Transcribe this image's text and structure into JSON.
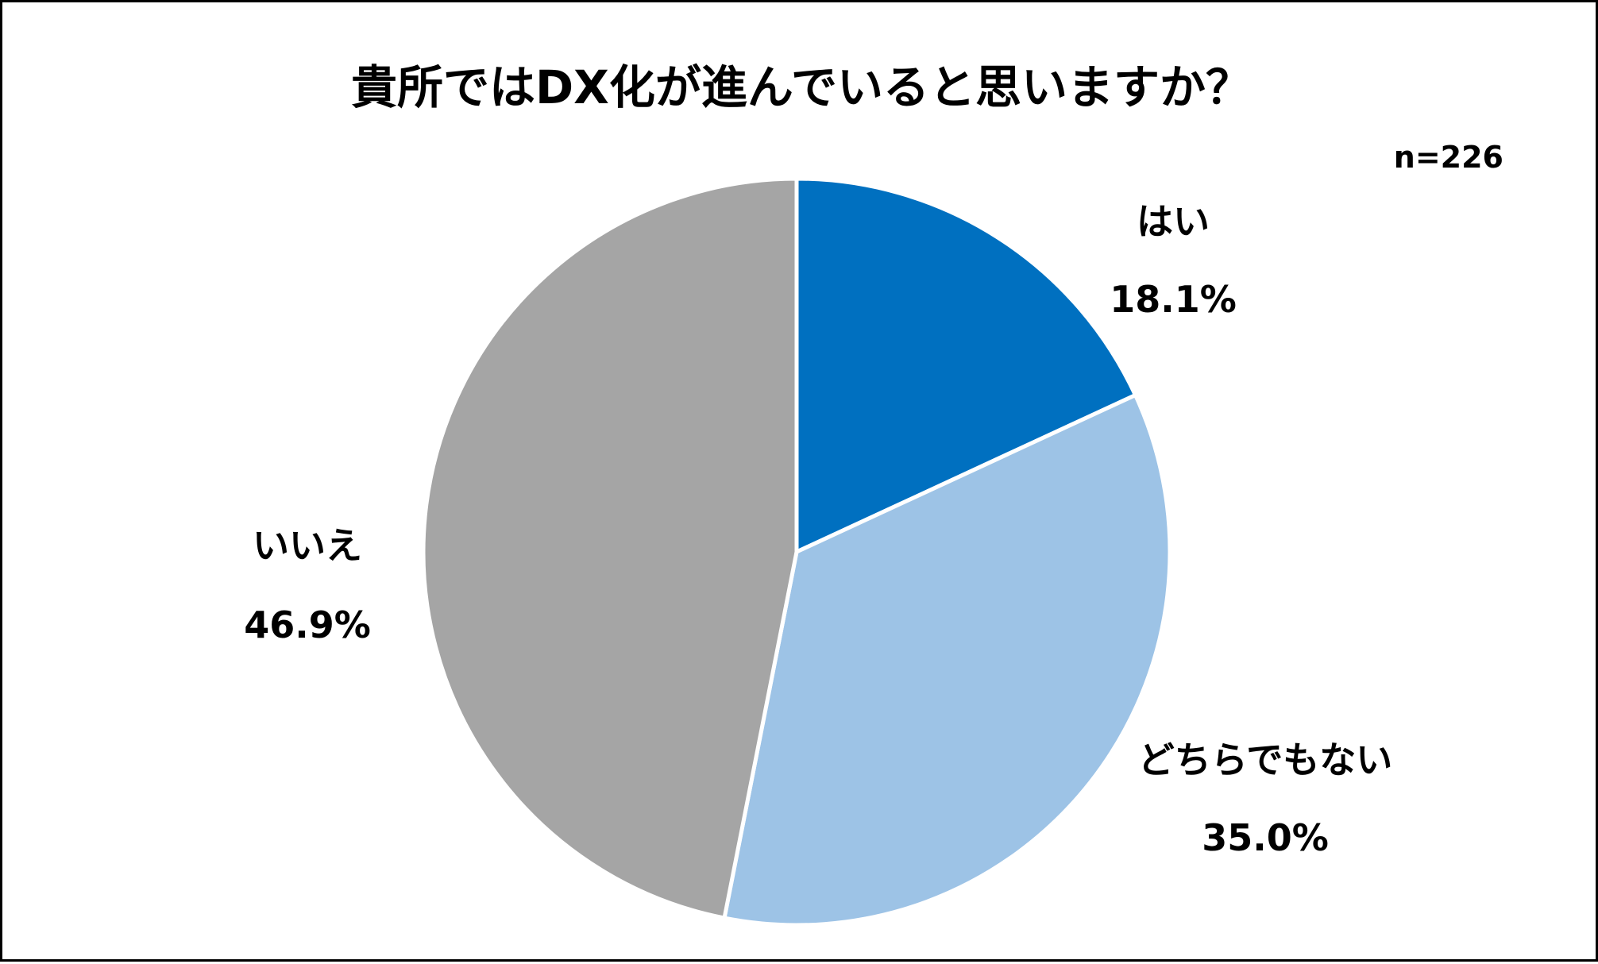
{
  "chart_data": {
    "type": "pie",
    "title": "貴所ではDX化が進んでいると思いますか？",
    "sample_size_label": "n=226",
    "start_angle_deg": 0,
    "direction": "clockwise",
    "slice_border_color": "#ffffff",
    "slices": [
      {
        "label": "はい",
        "value": 18.1,
        "value_label": "18.1%",
        "color": "#0070C0"
      },
      {
        "label": "どちらでもない",
        "value": 35.0,
        "value_label": "35.0%",
        "color": "#9DC3E6"
      },
      {
        "label": "いいえ",
        "value": 46.9,
        "value_label": "46.9%",
        "color": "#A5A5A5"
      }
    ]
  }
}
